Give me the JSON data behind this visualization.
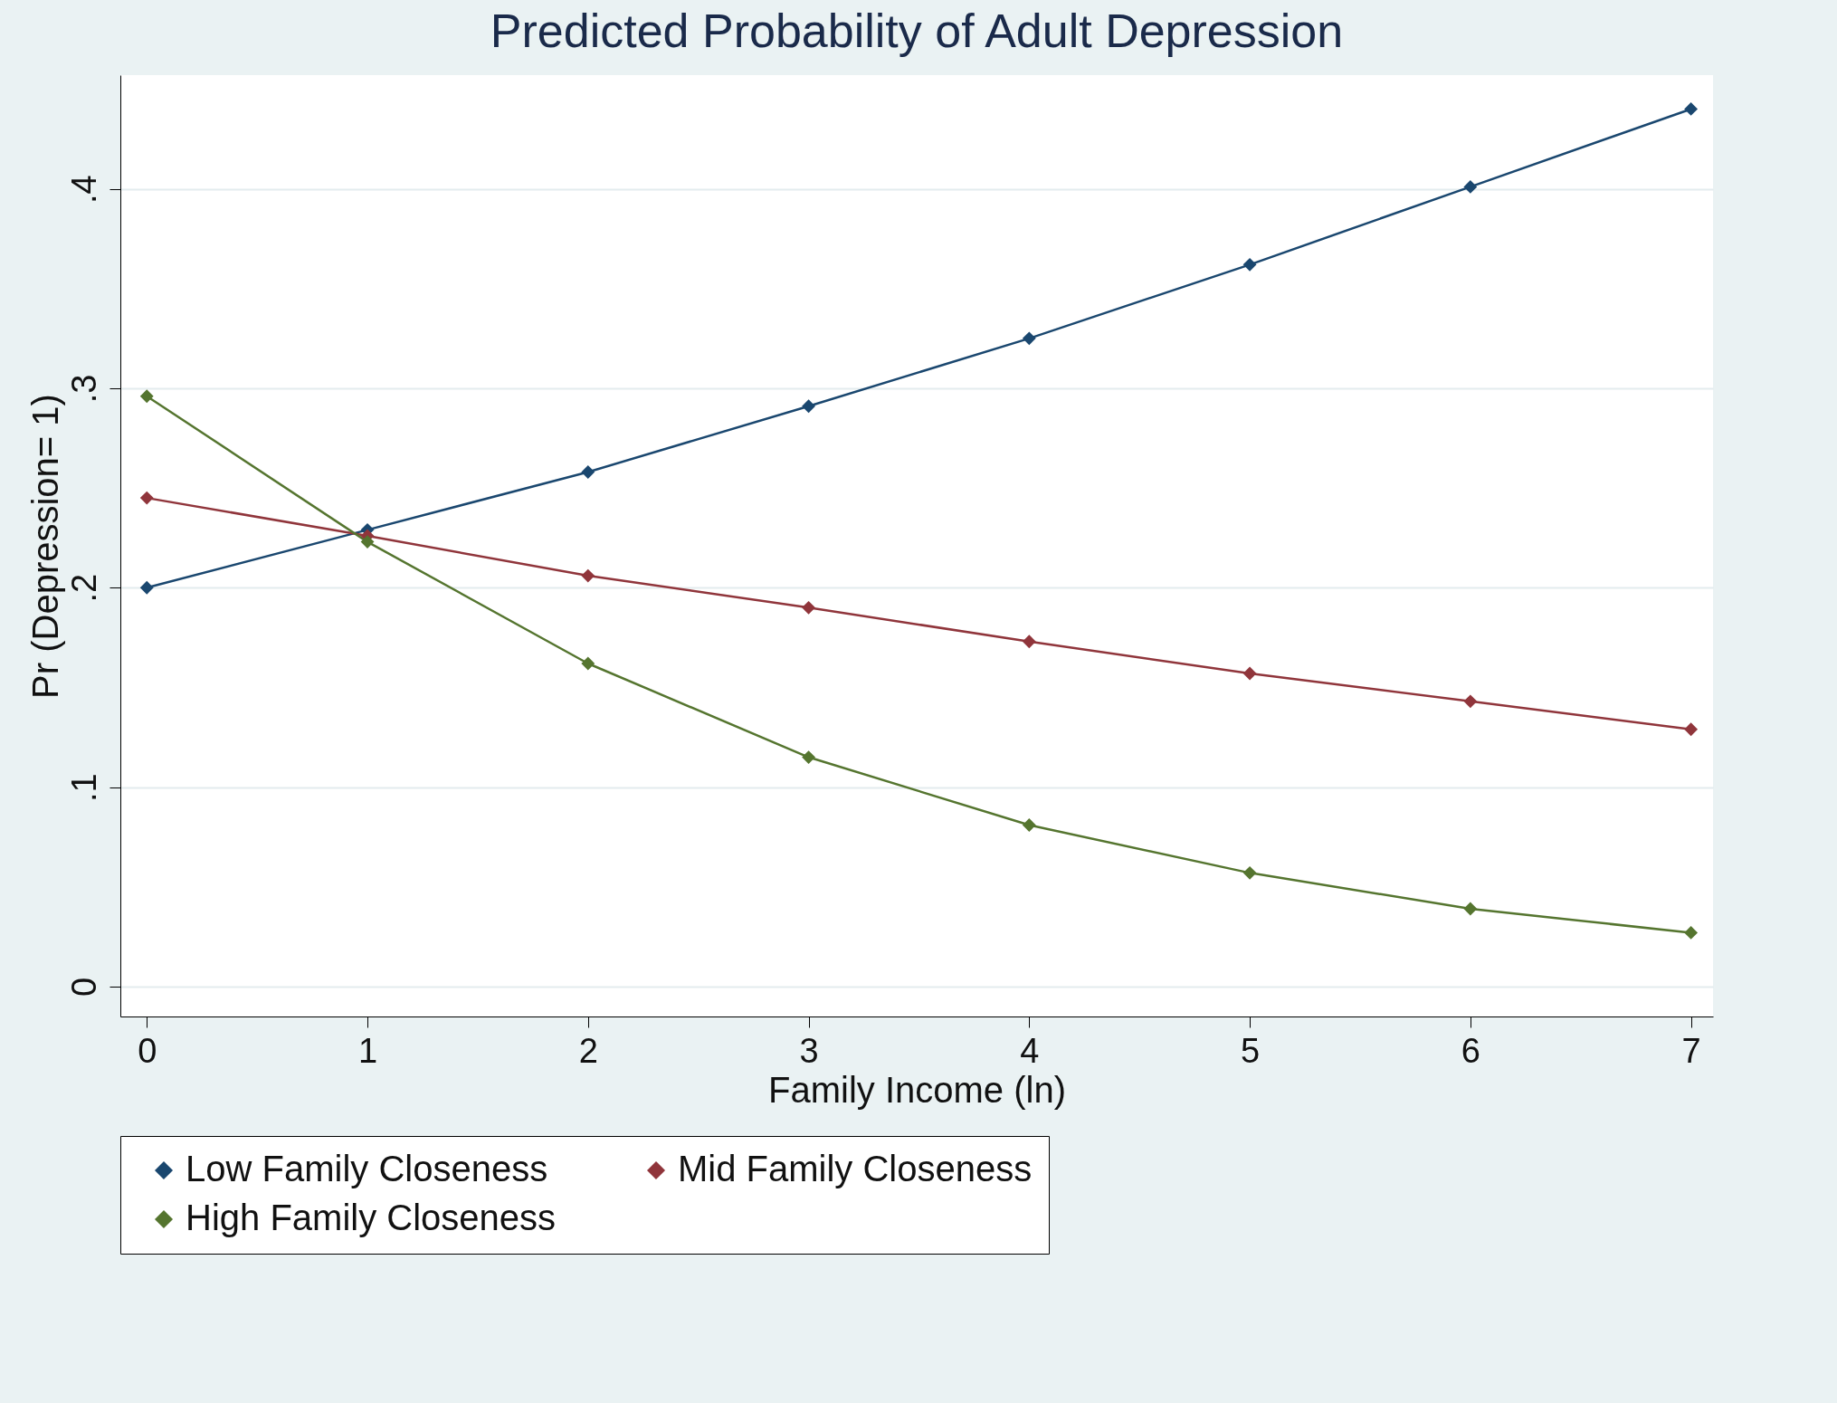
{
  "chart_data": {
    "type": "line",
    "title": "Predicted Probability of Adult Depression",
    "xlabel": "Family Income (ln)",
    "ylabel": "Pr (Depression= 1)",
    "x": [
      0,
      1,
      2,
      3,
      4,
      5,
      6,
      7
    ],
    "series": [
      {
        "name": "Low Family Closeness",
        "color": "#1a476f",
        "values": [
          0.2,
          0.229,
          0.258,
          0.291,
          0.325,
          0.362,
          0.401,
          0.44
        ]
      },
      {
        "name": "Mid Family Closeness",
        "color": "#90353b",
        "values": [
          0.245,
          0.226,
          0.206,
          0.19,
          0.173,
          0.157,
          0.143,
          0.129
        ]
      },
      {
        "name": "High Family Closeness",
        "color": "#55752f",
        "values": [
          0.296,
          0.223,
          0.162,
          0.115,
          0.081,
          0.057,
          0.039,
          0.027
        ]
      }
    ],
    "xlim": [
      -0.12,
      7.1
    ],
    "xticks": [
      0,
      1,
      2,
      3,
      4,
      5,
      6,
      7
    ],
    "ylim": [
      -0.015,
      0.457
    ],
    "yticks": [
      0,
      {
        "value": 0.1,
        "label": ".1"
      },
      {
        "value": 0.2,
        "label": ".2"
      },
      {
        "value": 0.3,
        "label": ".3"
      },
      {
        "value": 0.4,
        "label": ".4"
      }
    ],
    "grid": "y",
    "legend": "bottom",
    "marker": "diamond",
    "line_style": "solid"
  }
}
